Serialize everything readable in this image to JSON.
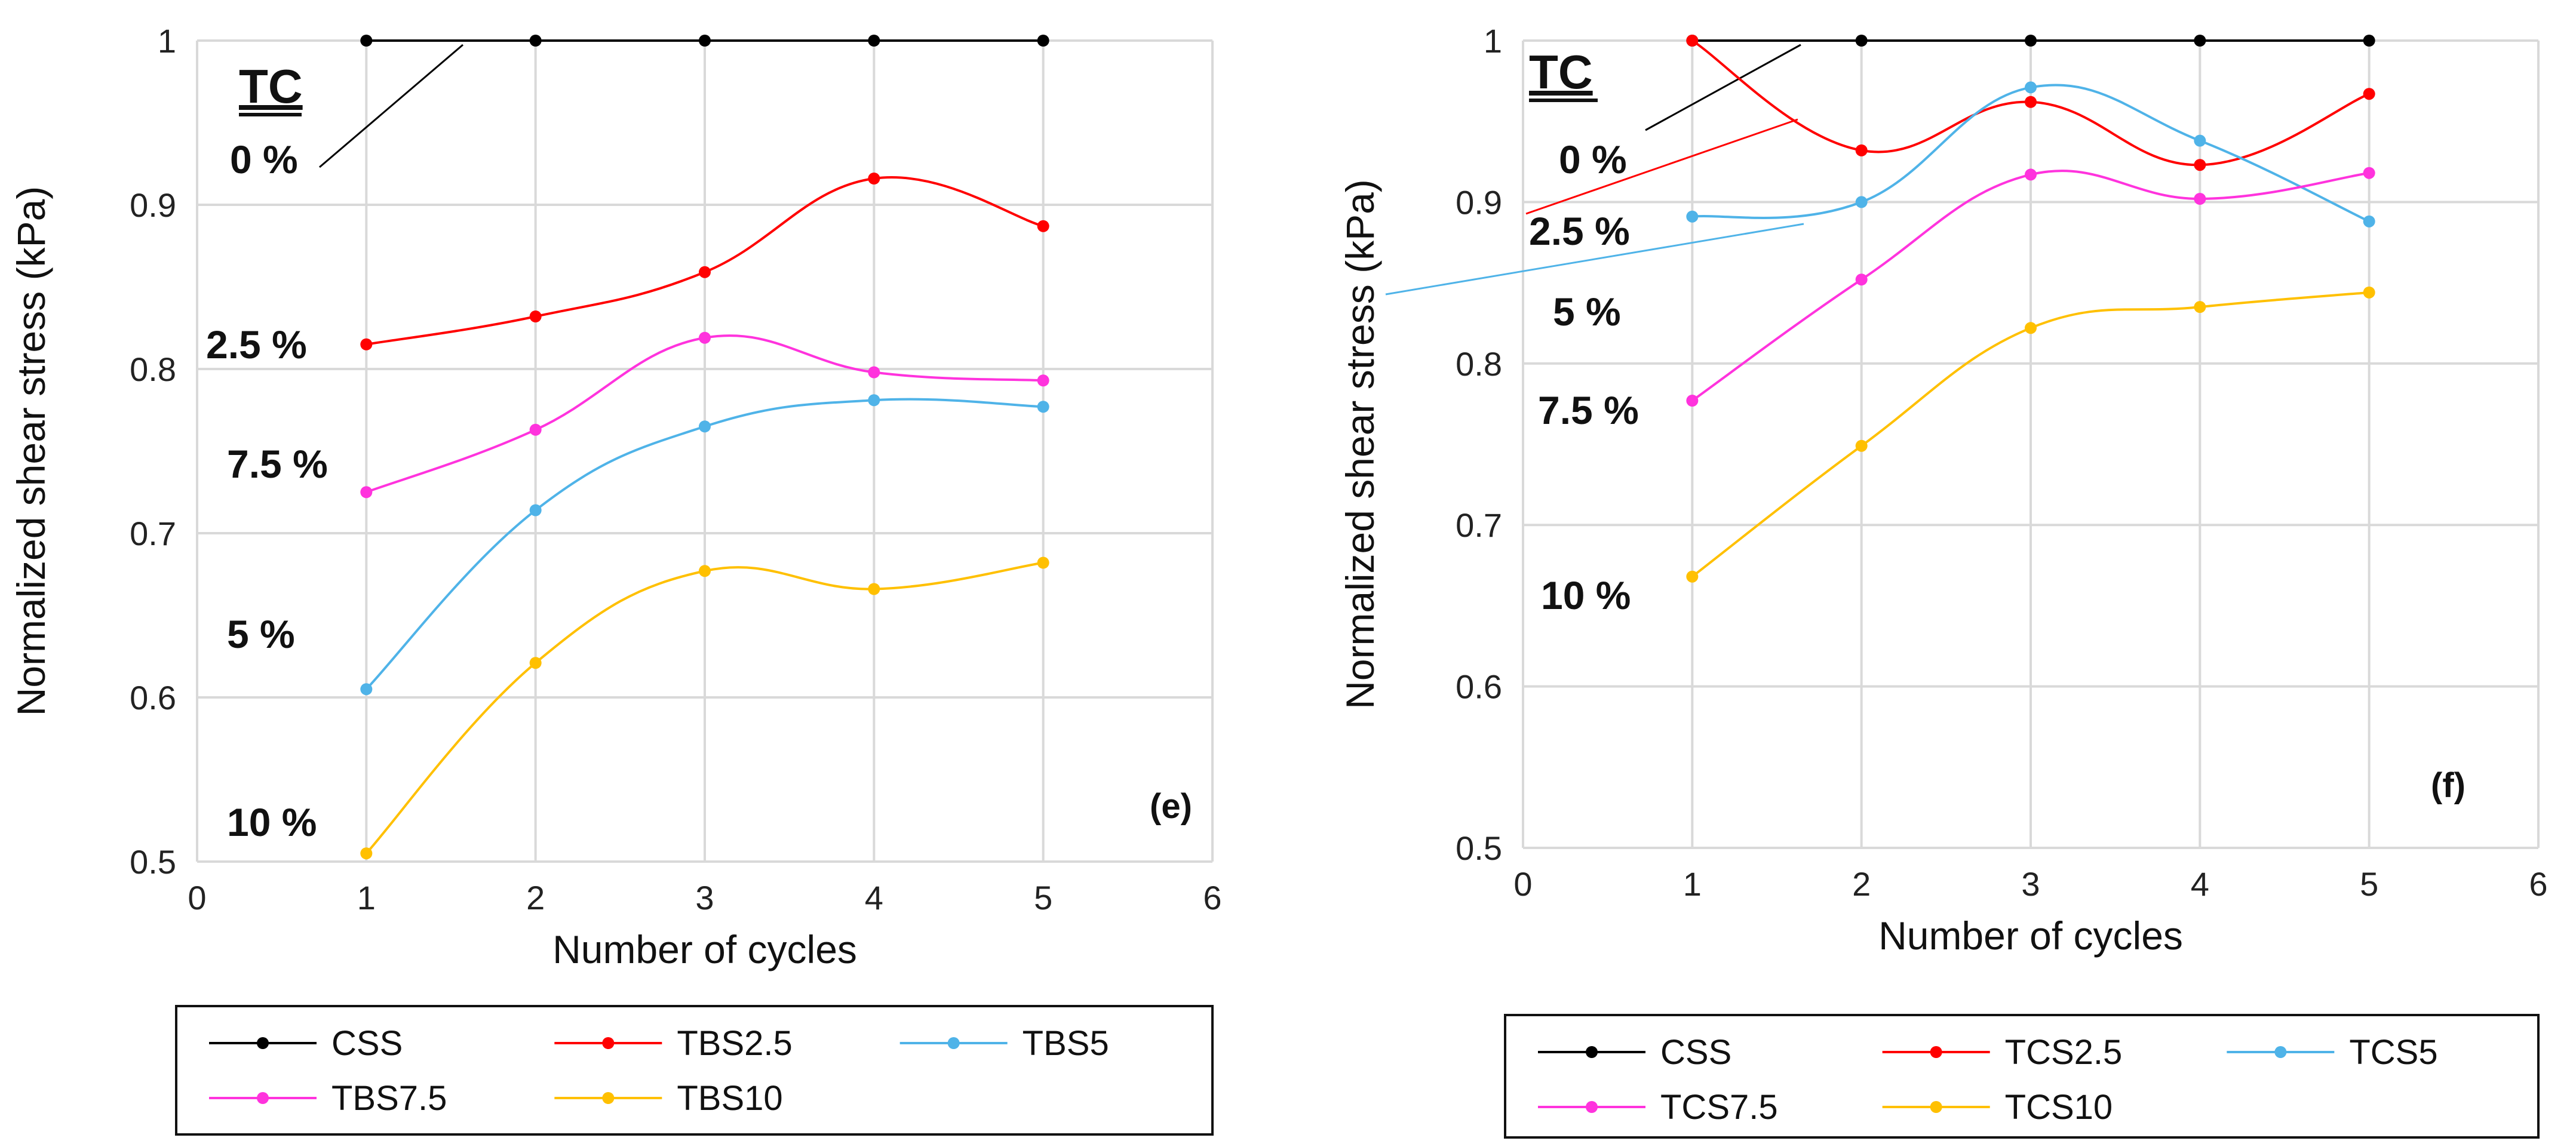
{
  "chart_data": [
    {
      "type": "line",
      "panel_label": "(e)",
      "xlabel": "Number of cycles",
      "ylabel": "Normalized shear stress (kPa)",
      "xlim": [
        0,
        6
      ],
      "ylim": [
        0.5,
        1
      ],
      "x_ticks": [
        "0",
        "1",
        "2",
        "3",
        "4",
        "5",
        "6"
      ],
      "y_ticks": [
        "0.5",
        "0.6",
        "0.7",
        "0.8",
        "0.9",
        "1"
      ],
      "grid": true,
      "group_label": "TC",
      "x": [
        1,
        2,
        3,
        4,
        5
      ],
      "series": [
        {
          "name": "CSS",
          "color": "#000000",
          "values": [
            1,
            1,
            1,
            1,
            1
          ]
        },
        {
          "name": "TBS2.5",
          "color": "#ff0000",
          "values": [
            0.815,
            0.832,
            0.859,
            0.916,
            0.887
          ]
        },
        {
          "name": "TBS5",
          "color": "#4fb3e8",
          "values": [
            0.605,
            0.714,
            0.765,
            0.781,
            0.777
          ]
        },
        {
          "name": "TBS7.5",
          "color": "#ff33dd",
          "values": [
            0.725,
            0.763,
            0.819,
            0.798,
            0.793
          ]
        },
        {
          "name": "TBS10",
          "color": "#ffc000",
          "values": [
            0.505,
            0.621,
            0.677,
            0.666,
            0.682
          ]
        }
      ],
      "annotations": [
        {
          "text": "0 %",
          "x": 0.4,
          "y": 0.924
        },
        {
          "text": "2.5 %",
          "x": 0.4,
          "y": 0.812
        },
        {
          "text": "7.5 %",
          "x": 0.5,
          "y": 0.737
        },
        {
          "text": "5 %",
          "x": 0.4,
          "y": 0.633
        },
        {
          "text": "10 %",
          "x": 0.5,
          "y": 0.518
        }
      ]
    },
    {
      "type": "line",
      "panel_label": "(f)",
      "xlabel": "Number of cycles",
      "ylabel": "Normalized shear stress (kPa)",
      "xlim": [
        0,
        6
      ],
      "ylim": [
        0.5,
        1
      ],
      "x_ticks": [
        "0",
        "1",
        "2",
        "3",
        "4",
        "5",
        "6"
      ],
      "y_ticks": [
        "0.5",
        "0.6",
        "0.7",
        "0.8",
        "0.9",
        "1"
      ],
      "grid": true,
      "group_label": "TC",
      "x": [
        1,
        2,
        3,
        4,
        5
      ],
      "series": [
        {
          "name": "CSS",
          "color": "#000000",
          "values": [
            1,
            1,
            1,
            1,
            1
          ]
        },
        {
          "name": "TCS2.5",
          "color": "#ff0000",
          "values": [
            1.0,
            0.932,
            0.962,
            0.923,
            0.967
          ]
        },
        {
          "name": "TCS5",
          "color": "#4fb3e8",
          "values": [
            0.891,
            0.9,
            0.971,
            0.938,
            0.888
          ]
        },
        {
          "name": "TCS7.5",
          "color": "#ff33dd",
          "values": [
            0.777,
            0.852,
            0.917,
            0.902,
            0.918
          ]
        },
        {
          "name": "TCS10",
          "color": "#ffc000",
          "values": [
            0.668,
            0.749,
            0.822,
            0.835,
            0.844
          ]
        }
      ],
      "annotations": [
        {
          "text": "0 %",
          "x": 0.4,
          "y": 0.922
        },
        {
          "text": "2.5 %",
          "x": 0.1,
          "y": 0.875
        },
        {
          "text": "5 %",
          "x": 0.4,
          "y": 0.828
        },
        {
          "text": "7.5 %",
          "x": 0.1,
          "y": 0.763
        },
        {
          "text": "10 %",
          "x": 0.1,
          "y": 0.648
        }
      ]
    }
  ]
}
